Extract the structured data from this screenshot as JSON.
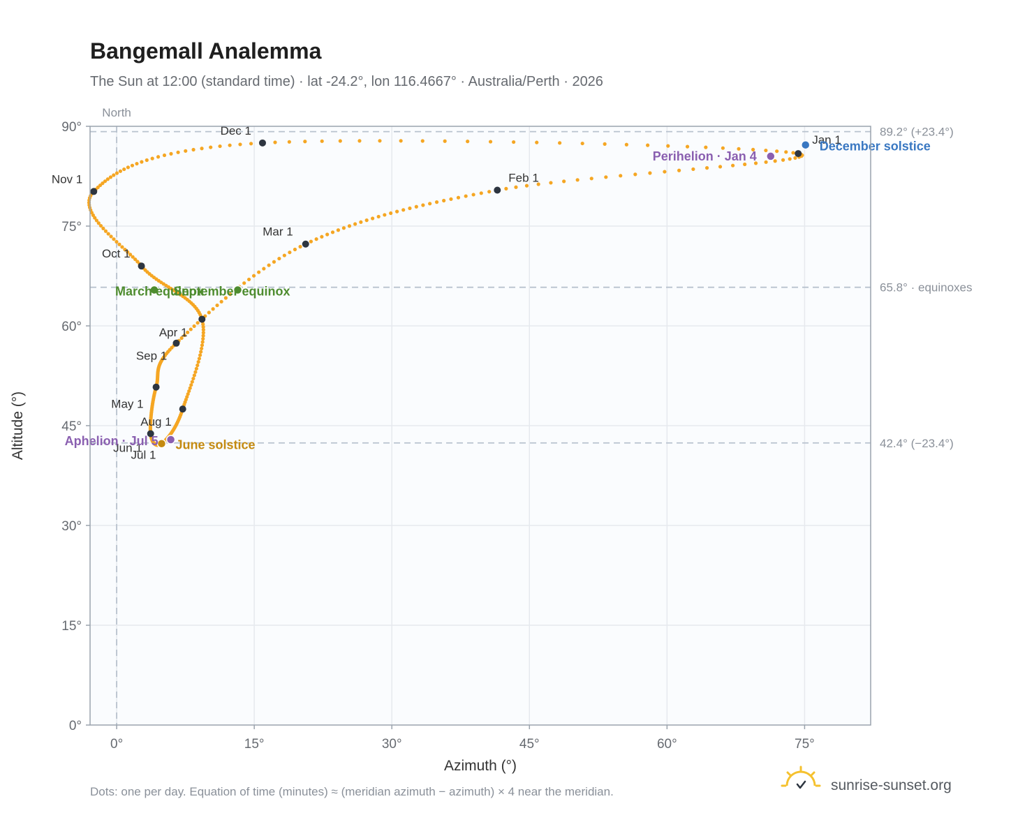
{
  "header": {
    "title": "Bangemall Analemma",
    "subtitle": "The Sun at 12:00 (standard time) · lat -24.2°, lon 116.4667° · Australia/Perth · 2026"
  },
  "footer": {
    "note": "Dots: one per day. Equation of time (minutes) ≈ (meridian azimuth − azimuth) × 4 near the meridian.",
    "brand": "sunrise-sunset.org",
    "brand_icon": "sun-logo-icon"
  },
  "colors": {
    "analemma": "#f5a623",
    "month_marker": "#2d3540",
    "equinox": "#4e8c2f",
    "solstice_june": "#c48a10",
    "solstice_december": "#3a78c2",
    "apsis": "#8a5fb0",
    "plot_background": "#fafcfe",
    "grid": "#e6e9ee",
    "reference_line": "#b8c2ce"
  },
  "chart_data": {
    "type": "scatter",
    "title": "Bangemall Analemma",
    "xlabel": "Azimuth (°)",
    "ylabel": "Altitude (°)",
    "xlim": [
      -2.9,
      82.2
    ],
    "ylim": [
      0,
      90
    ],
    "x_ticks": [
      0,
      15,
      30,
      45,
      60,
      75
    ],
    "x_tick_labels": [
      "0°",
      "15°",
      "30°",
      "45°",
      "60°",
      "75°"
    ],
    "y_ticks": [
      0,
      15,
      30,
      45,
      60,
      75,
      90
    ],
    "y_tick_labels": [
      "0°",
      "15°",
      "30°",
      "45°",
      "60°",
      "75°",
      "90°"
    ],
    "grid": true,
    "meridian": {
      "azimuth": 0,
      "label": "North"
    },
    "reference_lines": [
      {
        "altitude": 89.2,
        "label": "89.2° (+23.4°)"
      },
      {
        "altitude": 65.8,
        "label": "65.8° · equinoxes"
      },
      {
        "altitude": 42.4,
        "label": "42.4° (−23.4°)"
      }
    ],
    "month_markers": [
      {
        "label": "Jan 1",
        "x": 74.3,
        "y": 85.9,
        "label_dx": 20,
        "label_dy": -14,
        "anchor": "start"
      },
      {
        "label": "Feb 1",
        "x": 41.5,
        "y": 80.4,
        "label_dx": 16,
        "label_dy": -12,
        "anchor": "start"
      },
      {
        "label": "Mar 1",
        "x": 20.6,
        "y": 72.3,
        "label_dx": -18,
        "label_dy": -12,
        "anchor": "end"
      },
      {
        "label": "Apr 1",
        "x": 6.5,
        "y": 57.4,
        "label_dx": 16,
        "label_dy": -10,
        "anchor": "end"
      },
      {
        "label": "May 1",
        "x": 4.3,
        "y": 50.8,
        "label_dx": -18,
        "label_dy": 30,
        "anchor": "end"
      },
      {
        "label": "Jun 1",
        "x": 3.7,
        "y": 43.8,
        "label_dx": -12,
        "label_dy": 26,
        "anchor": "end"
      },
      {
        "label": "Jul 1",
        "x": 4.9,
        "y": 42.3,
        "label_dx": -8,
        "label_dy": 22,
        "anchor": "end"
      },
      {
        "label": "Aug 1",
        "x": 7.2,
        "y": 47.5,
        "label_dx": -16,
        "label_dy": 24,
        "anchor": "end"
      },
      {
        "label": "Sep 1",
        "x": 9.3,
        "y": 61.0,
        "label_dx": -50,
        "label_dy": 58,
        "anchor": "end"
      },
      {
        "label": "Oct 1",
        "x": 2.7,
        "y": 69.0,
        "label_dx": -16,
        "label_dy": -12,
        "anchor": "end"
      },
      {
        "label": "Nov 1",
        "x": -2.5,
        "y": 80.2,
        "label_dx": -16,
        "label_dy": -12,
        "anchor": "end"
      },
      {
        "label": "Dec 1",
        "x": 15.9,
        "y": 87.5,
        "label_dx": -16,
        "label_dy": -12,
        "anchor": "end"
      }
    ],
    "events": [
      {
        "label": "March equinox",
        "x": 4.1,
        "y": 65.4,
        "color": "#4e8c2f",
        "label_dx": -56,
        "label_dy": 8,
        "anchor": "start"
      },
      {
        "label": "September equinox",
        "x": 13.2,
        "y": 65.4,
        "color": "#4e8c2f",
        "label_dx": -92,
        "label_dy": 8,
        "anchor": "start"
      },
      {
        "label": "June solstice",
        "x": 4.9,
        "y": 42.3,
        "color": "#c48a10",
        "label_dx": 20,
        "label_dy": 8,
        "anchor": "start"
      },
      {
        "label": "December solstice",
        "x": 75.1,
        "y": 87.2,
        "color": "#3a78c2",
        "label_dx": 20,
        "label_dy": 8,
        "anchor": "start"
      },
      {
        "label": "Perihelion · Jan 4",
        "x": 71.3,
        "y": 85.5,
        "color": "#8a5fb0",
        "label_dx": -20,
        "label_dy": 6,
        "anchor": "end"
      },
      {
        "label": "Aphelion · Jul 5",
        "x": 5.9,
        "y": 42.9,
        "color": "#8a5fb0",
        "label_dx": -18,
        "label_dy": 8,
        "anchor": "end"
      }
    ]
  }
}
